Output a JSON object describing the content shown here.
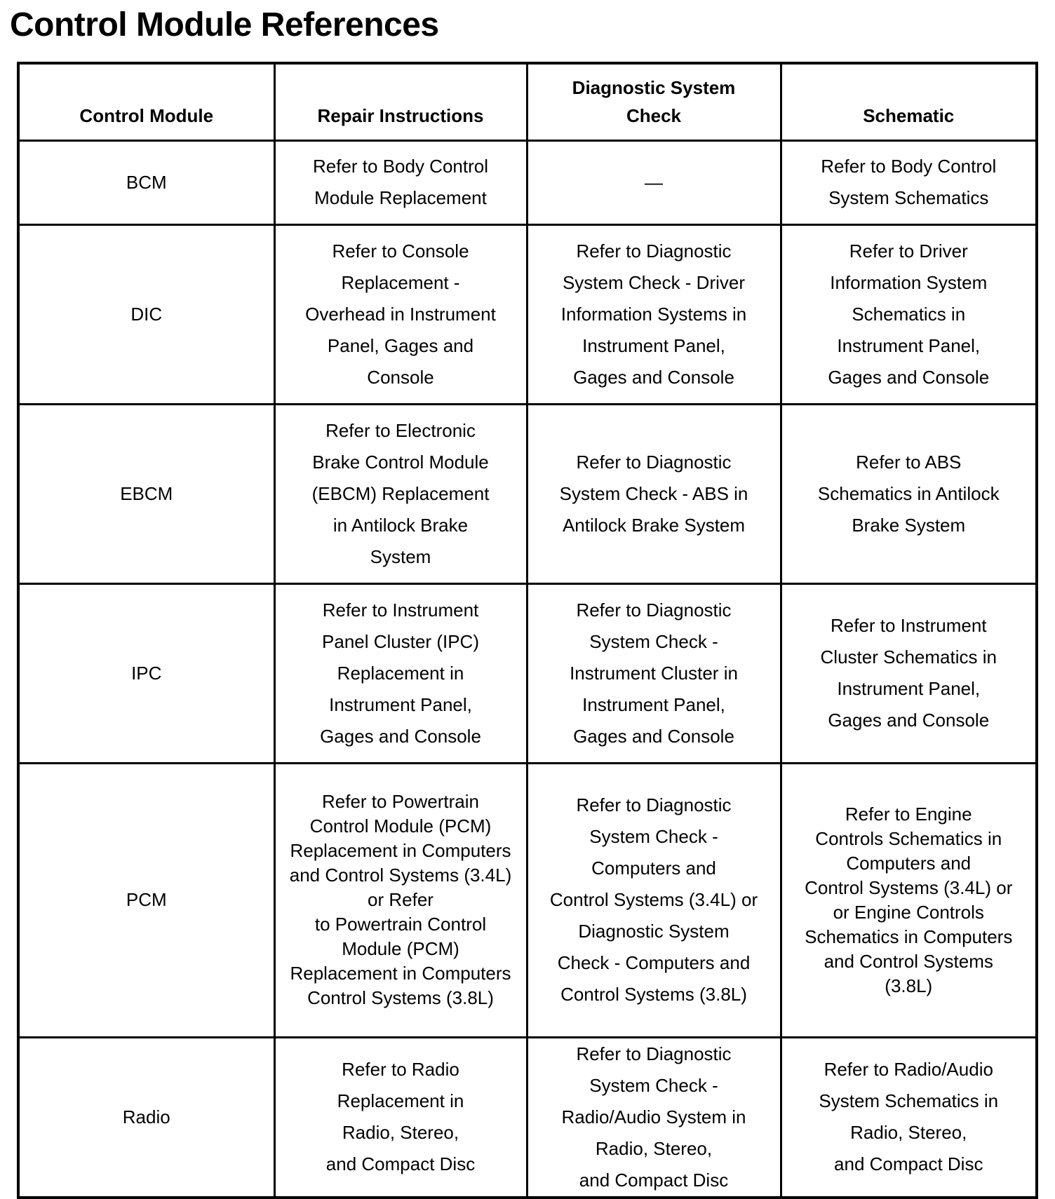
{
  "title": "Control Module References",
  "headers": [
    [
      "Control Module"
    ],
    [
      "Repair Instructions"
    ],
    [
      "Diagnostic System",
      "Check"
    ],
    [
      "Schematic"
    ]
  ],
  "rows": [
    {
      "module": "BCM",
      "repair": [
        "Refer to Body Control",
        "Module Replacement"
      ],
      "diagnostic": [
        "—"
      ],
      "schematic": [
        "Refer to Body Control",
        "System Schematics"
      ]
    },
    {
      "module": "DIC",
      "repair": [
        "Refer to Console",
        "Replacement -",
        "Overhead in Instrument",
        "Panel, Gages and",
        "Console"
      ],
      "diagnostic": [
        "Refer to Diagnostic",
        "System Check - Driver",
        "Information Systems in",
        "Instrument Panel,",
        "Gages and Console"
      ],
      "schematic": [
        "Refer to Driver",
        "Information System",
        "Schematics in",
        "Instrument Panel,",
        "Gages and Console"
      ]
    },
    {
      "module": "EBCM",
      "repair": [
        "Refer to Electronic",
        "Brake Control Module",
        "(EBCM) Replacement",
        "in Antilock Brake",
        "System"
      ],
      "diagnostic": [
        "Refer to Diagnostic",
        "System Check - ABS in",
        "Antilock Brake System"
      ],
      "schematic": [
        "Refer to ABS",
        "Schematics in Antilock",
        "Brake System"
      ]
    },
    {
      "module": "IPC",
      "repair": [
        "Refer to Instrument",
        "Panel Cluster (IPC)",
        "Replacement in",
        "Instrument Panel,",
        "Gages and Console"
      ],
      "diagnostic": [
        "Refer to Diagnostic",
        "System Check -",
        "Instrument Cluster in",
        "Instrument Panel,",
        "Gages and Console"
      ],
      "schematic": [
        "Refer to Instrument",
        "Cluster Schematics in",
        "Instrument Panel,",
        "Gages and Console"
      ]
    },
    {
      "module": "PCM",
      "repair": [
        "Refer to Powertrain",
        "Control Module (PCM)",
        "Replacement in  Computers",
        "and Control Systems  (3.4L)",
        "or Refer",
        "to Powertrain Control",
        "Module (PCM)",
        "Replacement in  Computers",
        "Control Systems (3.8L)"
      ],
      "diagnostic": [
        "Refer to Diagnostic",
        "System Check -",
        "Computers and",
        "Control Systems  (3.4L) or",
        "Diagnostic System",
        "Check -  Computers and",
        "Control Systems  (3.8L)"
      ],
      "schematic": [
        "Refer to Engine",
        "Controls Schematics in",
        "Computers and",
        "Control Systems  (3.4L) or",
        "or Engine Controls",
        "Schematics in  Computers",
        "and  Control Systems",
        "(3.8L)"
      ]
    },
    {
      "module": "Radio",
      "repair": [
        "Refer to Radio",
        "Replacement in",
        "Radio, Stereo,",
        "and Compact Disc"
      ],
      "diagnostic": [
        "Refer to Diagnostic",
        "System Check -",
        "Radio/Audio System in",
        "Radio, Stereo,",
        "and Compact Disc"
      ],
      "schematic": [
        "Refer to Radio/Audio",
        "System Schematics in",
        "Radio, Stereo,",
        "and Compact Disc"
      ]
    }
  ]
}
